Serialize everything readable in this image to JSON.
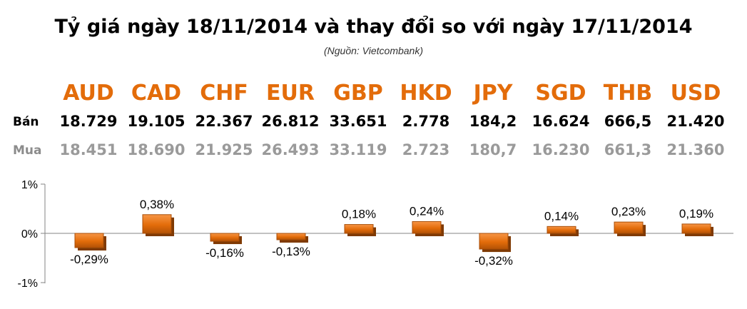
{
  "title": "Tỷ giá ngày 18/11/2014 và thay đổi so với ngày 17/11/2014",
  "source": "(Nguồn: Vietcombank)",
  "table": {
    "sell_label": "Bán",
    "buy_label": "Mua",
    "currencies": [
      "AUD",
      "CAD",
      "CHF",
      "EUR",
      "GBP",
      "HKD",
      "JPY",
      "SGD",
      "THB",
      "USD"
    ],
    "sell": [
      "18.729",
      "19.105",
      "22.367",
      "26.812",
      "33.651",
      "2.778",
      "184,2",
      "16.624",
      "666,5",
      "21.420"
    ],
    "buy": [
      "18.451",
      "18.690",
      "21.925",
      "26.493",
      "33.119",
      "2.723",
      "180,7",
      "16.230",
      "661,3",
      "21.360"
    ]
  },
  "chart_data": {
    "type": "bar",
    "categories": [
      "AUD",
      "CAD",
      "CHF",
      "EUR",
      "GBP",
      "HKD",
      "JPY",
      "SGD",
      "THB",
      "USD"
    ],
    "values": [
      -0.29,
      0.38,
      -0.16,
      -0.13,
      0.18,
      0.24,
      -0.32,
      0.14,
      0.23,
      0.19
    ],
    "data_labels": [
      "-0,29%",
      "0,38%",
      "-0,16%",
      "-0,13%",
      "0,18%",
      "0,24%",
      "-0,32%",
      "0,14%",
      "0,23%",
      "0,19%"
    ],
    "ylim": [
      -1,
      1
    ],
    "yticks": [
      1,
      0,
      -1
    ],
    "ytick_labels": [
      "1%",
      "0%",
      "-1%"
    ],
    "xlabel": "",
    "ylabel": "",
    "grid": false,
    "bar_color": "#e36c0a"
  }
}
